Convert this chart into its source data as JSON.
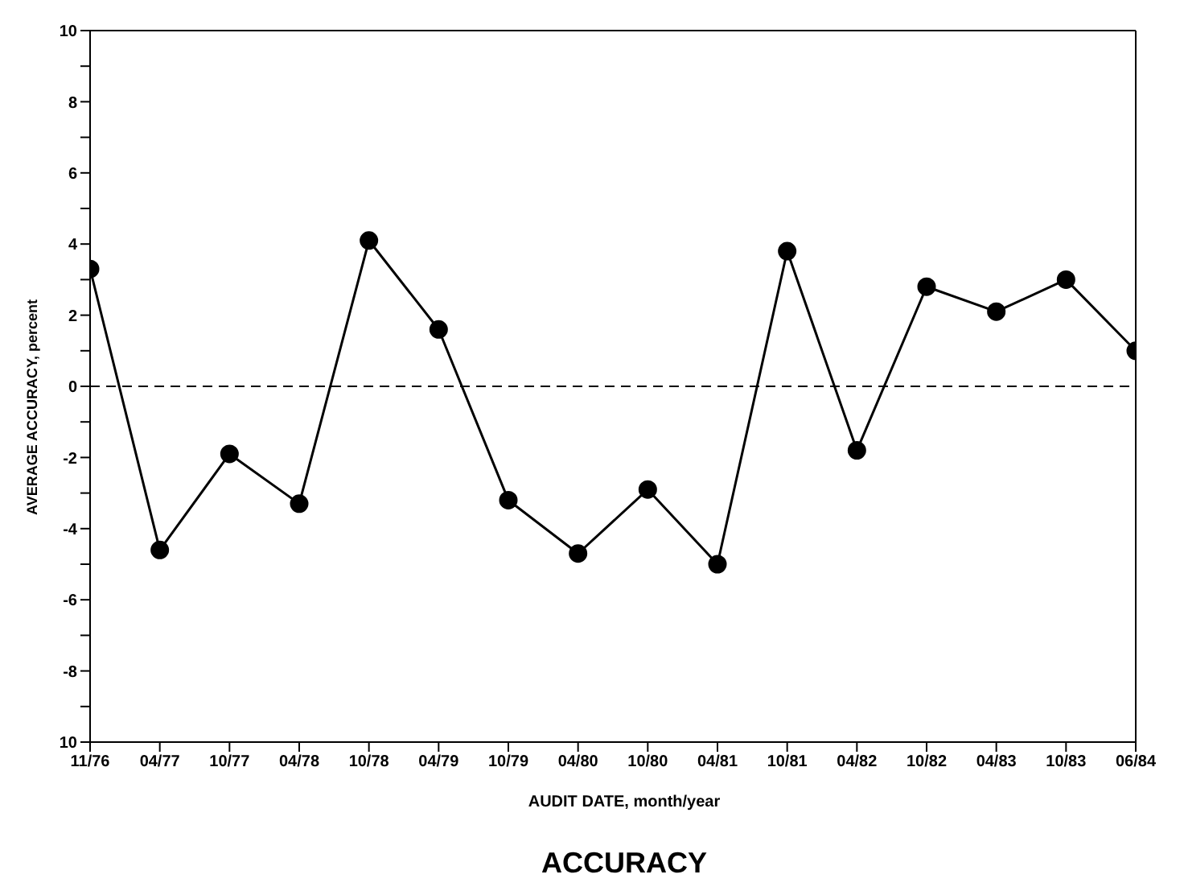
{
  "chart_data": {
    "type": "line",
    "title": "ACCURACY",
    "xlabel": "AUDIT DATE, month/year",
    "ylabel": "AVERAGE ACCURACY, percent",
    "categories": [
      "11/76",
      "04/77",
      "10/77",
      "04/78",
      "10/78",
      "04/79",
      "10/79",
      "04/80",
      "10/80",
      "04/81",
      "10/81",
      "04/82",
      "10/82",
      "04/83",
      "10/83",
      "06/84"
    ],
    "series": [
      {
        "color": "#000000",
        "values": [
          3.3,
          -4.6,
          -1.9,
          -3.3,
          4.1,
          1.6,
          -3.2,
          -4.7,
          -2.9,
          -5.0,
          3.8,
          -1.8,
          2.8,
          2.1,
          3.0,
          1.0
        ]
      }
    ],
    "ylim": [
      -10,
      10
    ],
    "yticks": [
      {
        "value": -10,
        "label": "10"
      },
      {
        "value": -9,
        "label": null
      },
      -8,
      {
        "value": -7,
        "label": null
      },
      -6,
      {
        "value": -5,
        "label": null
      },
      -4,
      {
        "value": -3,
        "label": null
      },
      -2,
      {
        "value": -1,
        "label": null
      },
      0,
      {
        "value": 1,
        "label": null
      },
      2,
      {
        "value": 3,
        "label": null
      },
      4,
      {
        "value": 5,
        "label": null
      },
      6,
      {
        "value": 7,
        "label": null
      },
      8,
      {
        "value": 9,
        "label": null
      },
      10
    ],
    "ref_lines": [
      {
        "axis": "y",
        "value": 0,
        "line_style": "dashed",
        "color": "#000000"
      }
    ],
    "marker": "circle",
    "line_style": "solid",
    "grid": false,
    "legend": false
  }
}
